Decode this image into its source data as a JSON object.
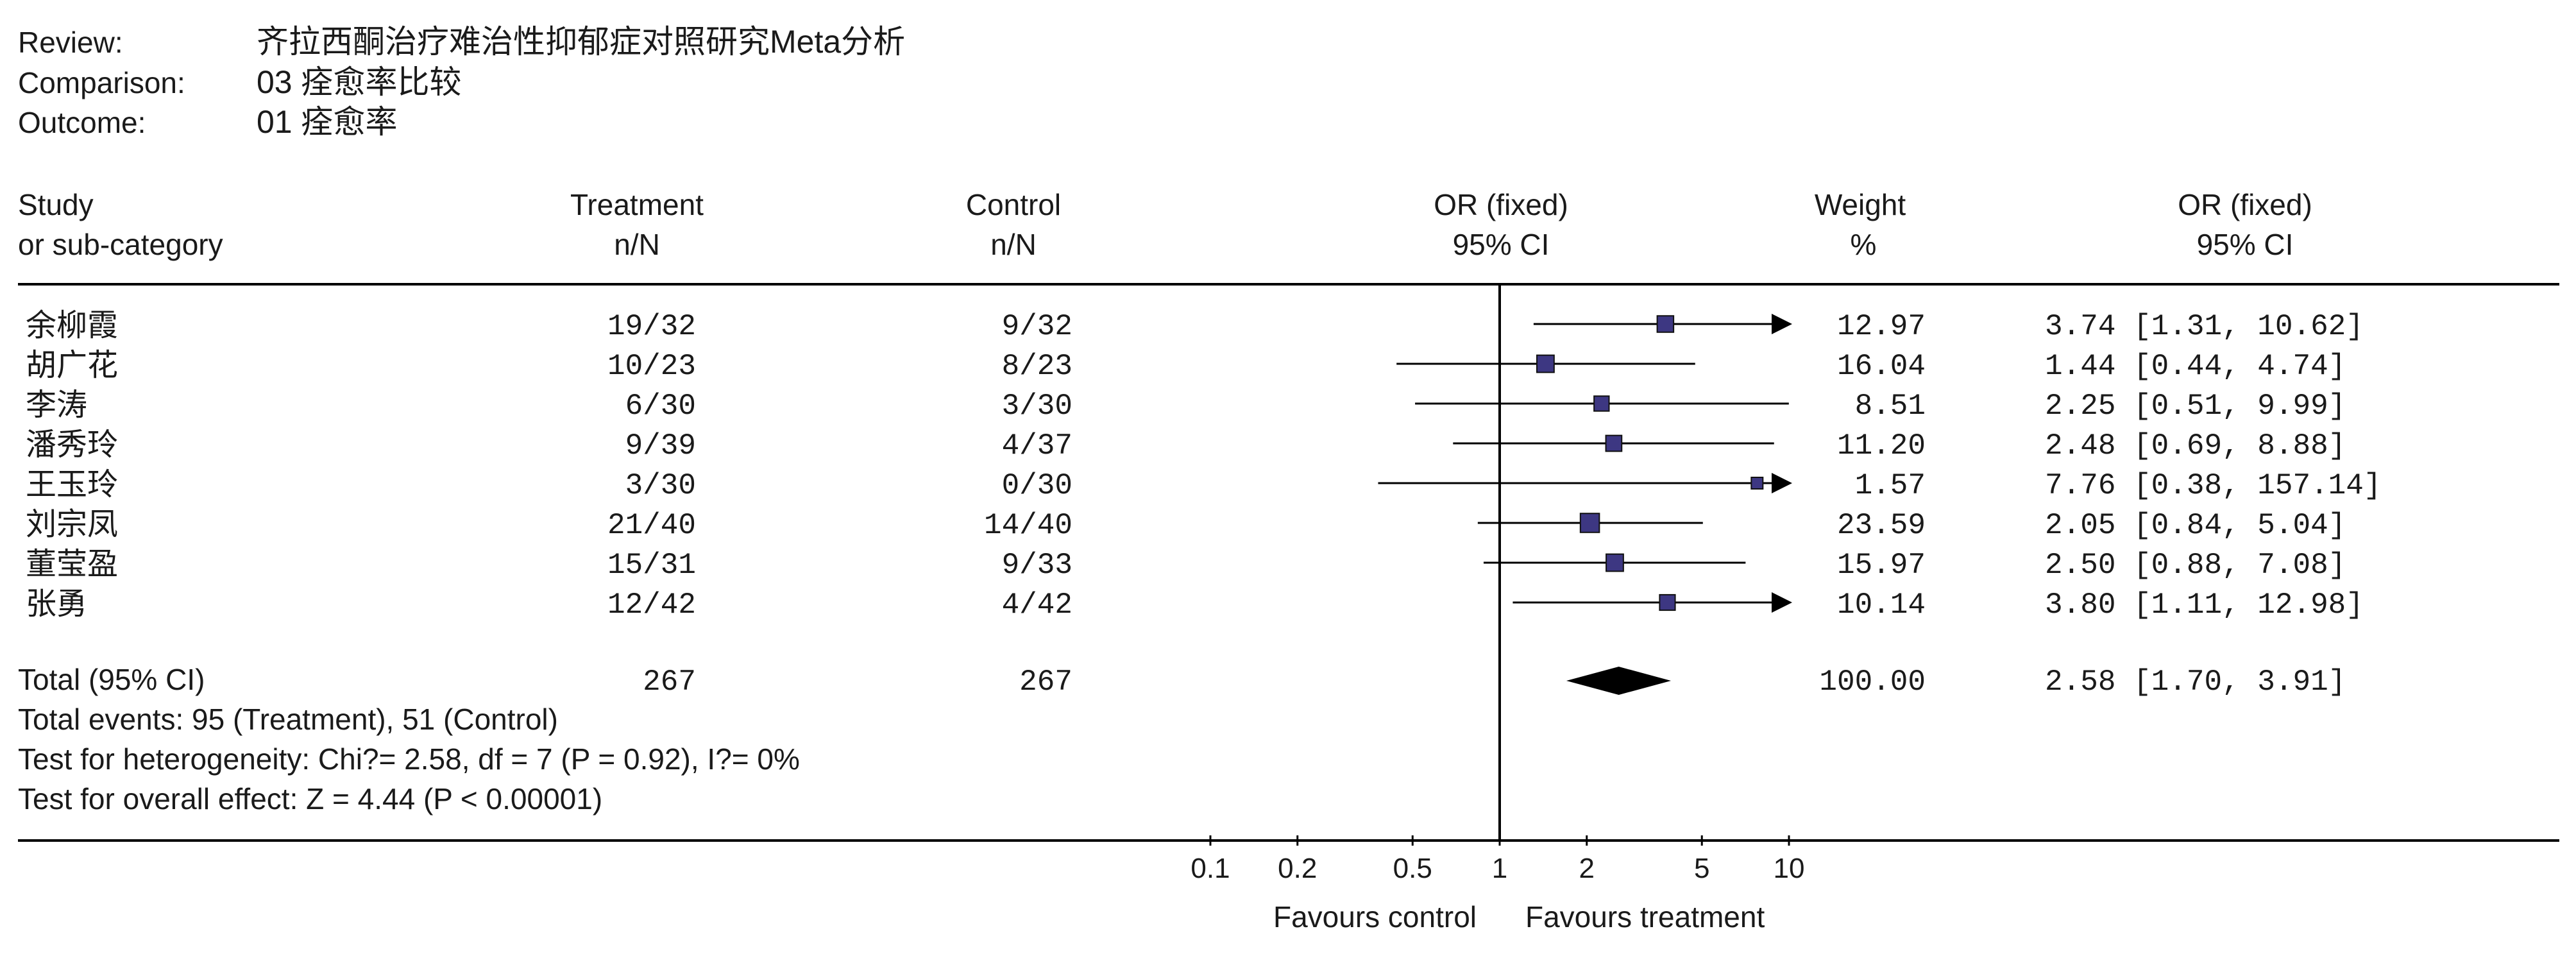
{
  "header": {
    "review_label": "Review:",
    "review_value": "齐拉西酮治疗难治性抑郁症对照研究Meta分析",
    "comparison_label": "Comparison:",
    "comparison_value": "03 痊愈率比较",
    "outcome_label": "Outcome:",
    "outcome_value": "01 痊愈率"
  },
  "columns": {
    "study_1": "Study",
    "study_2": "or sub-category",
    "treatment_1": "Treatment",
    "treatment_2": "n/N",
    "control_1": "Control",
    "control_2": "n/N",
    "or_1": "OR (fixed)",
    "or_2": "95% CI",
    "weight_1": "Weight",
    "weight_2": "%",
    "orci_1": "OR (fixed)",
    "orci_2": "95% CI"
  },
  "chart_data": {
    "type": "forest",
    "x_scale": "log",
    "xlim": [
      0.1,
      10
    ],
    "ticks": [
      "0.1",
      "0.2",
      "0.5",
      "1",
      "2",
      "5",
      "10"
    ],
    "null_line": 1,
    "studies": [
      {
        "name": "余柳霞",
        "treatment": "19/32",
        "control": "9/32",
        "or": 3.74,
        "lo": 1.31,
        "hi": 10.62,
        "weight": "12.97",
        "ci_text": "3.74 [1.31, 10.62]"
      },
      {
        "name": "胡广花",
        "treatment": "10/23",
        "control": "8/23",
        "or": 1.44,
        "lo": 0.44,
        "hi": 4.74,
        "weight": "16.04",
        "ci_text": "1.44 [0.44, 4.74]"
      },
      {
        "name": "李涛",
        "treatment": "6/30",
        "control": "3/30",
        "or": 2.25,
        "lo": 0.51,
        "hi": 9.99,
        "weight": "8.51",
        "ci_text": "2.25 [0.51, 9.99]"
      },
      {
        "name": "潘秀玲",
        "treatment": "9/39",
        "control": "4/37",
        "or": 2.48,
        "lo": 0.69,
        "hi": 8.88,
        "weight": "11.20",
        "ci_text": "2.48 [0.69, 8.88]"
      },
      {
        "name": "王玉玲",
        "treatment": "3/30",
        "control": "0/30",
        "or": 7.76,
        "lo": 0.38,
        "hi": 157.14,
        "weight": "1.57",
        "ci_text": "7.76 [0.38, 157.14]"
      },
      {
        "name": "刘宗凤",
        "treatment": "21/40",
        "control": "14/40",
        "or": 2.05,
        "lo": 0.84,
        "hi": 5.04,
        "weight": "23.59",
        "ci_text": "2.05 [0.84, 5.04]"
      },
      {
        "name": "董莹盈",
        "treatment": "15/31",
        "control": "9/33",
        "or": 2.5,
        "lo": 0.88,
        "hi": 7.08,
        "weight": "15.97",
        "ci_text": "2.50 [0.88, 7.08]"
      },
      {
        "name": "张勇",
        "treatment": "12/42",
        "control": "4/42",
        "or": 3.8,
        "lo": 1.11,
        "hi": 12.98,
        "weight": "10.14",
        "ci_text": "3.80 [1.11, 12.98]"
      }
    ],
    "total": {
      "label": "Total (95% CI)",
      "treatment": "267",
      "control": "267",
      "or": 2.58,
      "lo": 1.7,
      "hi": 3.91,
      "weight": "100.00",
      "ci_text": "2.58 [1.70, 3.91]"
    },
    "footnotes": [
      "Total events: 95 (Treatment), 51 (Control)",
      "Test for heterogeneity: Chi?= 2.58, df = 7 (P = 0.92), I?= 0%",
      "Test for overall effect: Z = 4.44 (P < 0.00001)"
    ],
    "favours_left": "Favours control",
    "favours_right": "Favours treatment"
  },
  "colors": {
    "marker": "#3d3782",
    "text": "#1a1a1a",
    "line": "#000000"
  }
}
